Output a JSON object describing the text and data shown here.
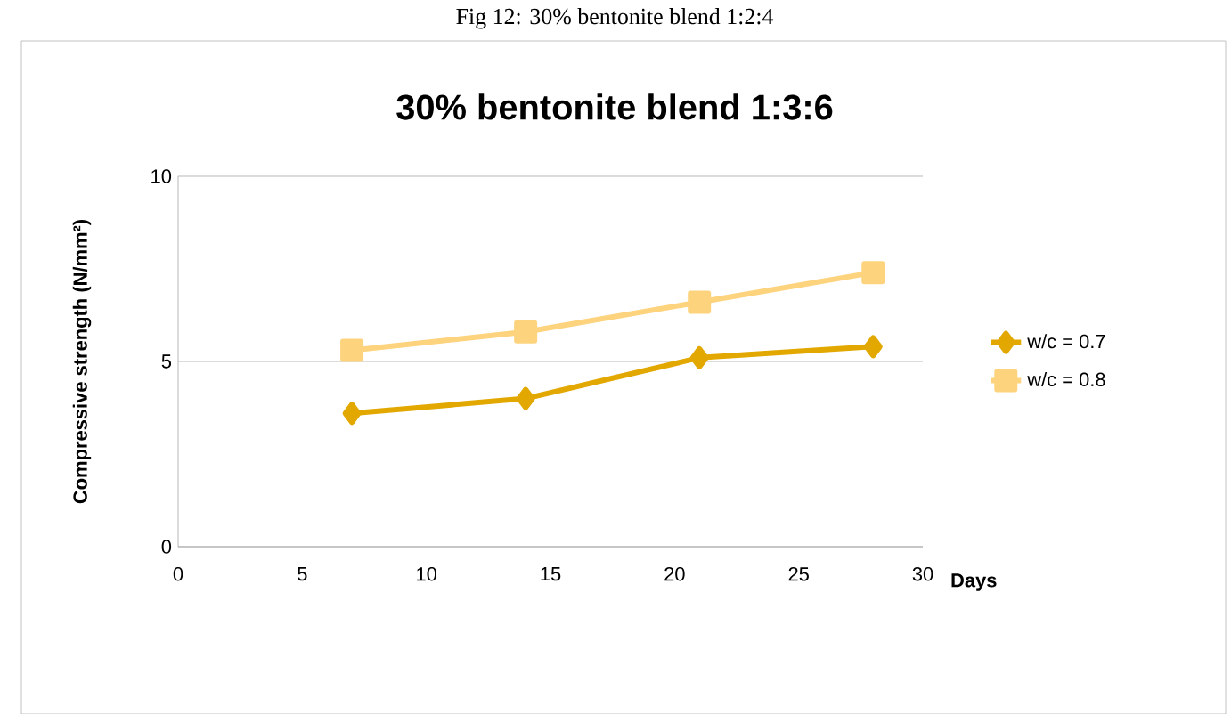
{
  "chart_data": {
    "type": "line",
    "title": "30% bentonite blend 1:3:6",
    "annotations": [
      "Fig 12: 30% bentonite blend 1:2:4"
    ],
    "xlabel": "Days",
    "ylabel": "Compressive strength (N/mm²)",
    "x": [
      7,
      14,
      21,
      28
    ],
    "series": [
      {
        "name": "w/c = 0.7",
        "color": "#e2a800",
        "marker": "diamond",
        "values": [
          3.6,
          4.0,
          5.1,
          5.4
        ]
      },
      {
        "name": "w/c = 0.8",
        "color": "#fdd37d",
        "marker": "square",
        "values": [
          5.3,
          5.8,
          6.6,
          7.4
        ]
      }
    ],
    "xlim": [
      0,
      30
    ],
    "xticks": [
      0,
      5,
      10,
      15,
      20,
      25,
      30
    ],
    "ylim": [
      0,
      10
    ],
    "yticks": [
      0,
      5,
      10
    ],
    "grid": "y",
    "legend": "right",
    "line_style": "solid"
  }
}
